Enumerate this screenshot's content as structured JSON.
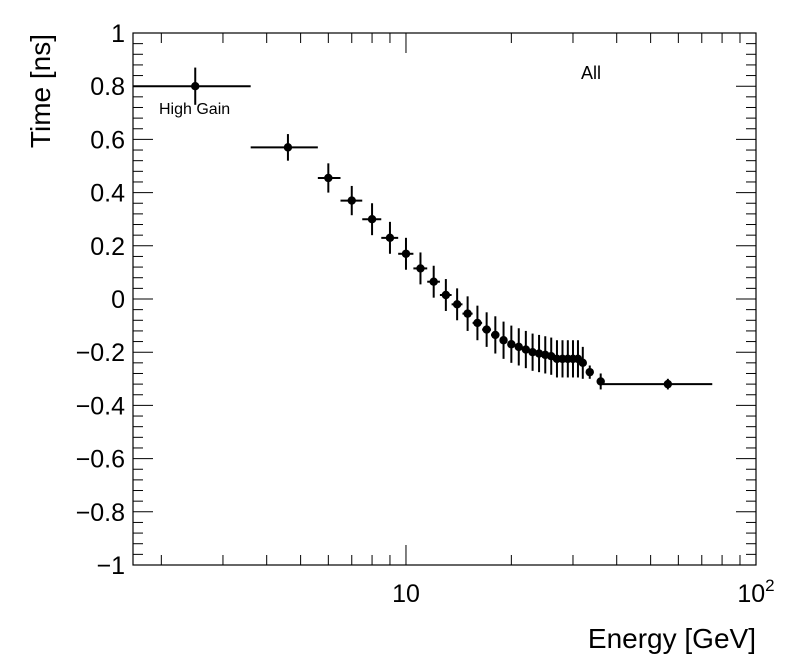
{
  "chart_data": {
    "type": "scatter",
    "title": "",
    "xlabel": "Energy [GeV]",
    "ylabel": "Time [ns]",
    "xscale": "log",
    "xlim": [
      1.66,
      100
    ],
    "ylim": [
      -1,
      1
    ],
    "grid": false,
    "y_tick_labels": [
      "1",
      "0.8",
      "0.6",
      "0.4",
      "0.2",
      "0",
      "−0.2",
      "−0.4",
      "−0.6",
      "−0.8",
      "−1"
    ],
    "x_tick_labels": [
      {
        "value": 10,
        "base": "10",
        "exp": ""
      },
      {
        "value": 100,
        "base": "10",
        "exp": "2"
      }
    ],
    "annotations": [
      {
        "text": "All",
        "position": "top-right"
      },
      {
        "text": "High Gain",
        "position": "top-left"
      }
    ],
    "series": [
      {
        "marker": "filled-circle",
        "points": [
          {
            "x": 2.5,
            "y": 0.8,
            "xlo": 1.66,
            "xhi": 3.6,
            "yerr": 0.07
          },
          {
            "x": 4.6,
            "y": 0.57,
            "xlo": 3.6,
            "xhi": 5.6,
            "yerr": 0.05
          },
          {
            "x": 6.0,
            "y": 0.455,
            "xlo": 5.6,
            "xhi": 6.5,
            "yerr": 0.055
          },
          {
            "x": 7.0,
            "y": 0.37,
            "xlo": 6.5,
            "xhi": 7.5,
            "yerr": 0.055
          },
          {
            "x": 8.0,
            "y": 0.3,
            "xlo": 7.5,
            "xhi": 8.5,
            "yerr": 0.06
          },
          {
            "x": 9.0,
            "y": 0.23,
            "xlo": 8.5,
            "xhi": 9.5,
            "yerr": 0.06
          },
          {
            "x": 10.0,
            "y": 0.17,
            "xlo": 9.5,
            "xhi": 10.5,
            "yerr": 0.06
          },
          {
            "x": 11.0,
            "y": 0.115,
            "xlo": 10.5,
            "xhi": 11.5,
            "yerr": 0.06
          },
          {
            "x": 12.0,
            "y": 0.065,
            "xlo": 11.5,
            "xhi": 12.5,
            "yerr": 0.06
          },
          {
            "x": 13.0,
            "y": 0.015,
            "xlo": 12.5,
            "xhi": 13.5,
            "yerr": 0.06
          },
          {
            "x": 14.0,
            "y": -0.02,
            "xlo": 13.5,
            "xhi": 14.5,
            "yerr": 0.06
          },
          {
            "x": 15.0,
            "y": -0.055,
            "xlo": 14.5,
            "xhi": 15.5,
            "yerr": 0.065
          },
          {
            "x": 16.0,
            "y": -0.09,
            "xlo": 15.5,
            "xhi": 16.5,
            "yerr": 0.065
          },
          {
            "x": 17.0,
            "y": -0.115,
            "xlo": 16.5,
            "xhi": 17.5,
            "yerr": 0.065
          },
          {
            "x": 18.0,
            "y": -0.135,
            "xlo": 17.5,
            "xhi": 18.5,
            "yerr": 0.07
          },
          {
            "x": 19.0,
            "y": -0.155,
            "xlo": 18.5,
            "xhi": 19.5,
            "yerr": 0.07
          },
          {
            "x": 20.0,
            "y": -0.17,
            "xlo": 19.5,
            "xhi": 20.5,
            "yerr": 0.07
          },
          {
            "x": 21.0,
            "y": -0.18,
            "xlo": 20.5,
            "xhi": 21.5,
            "yerr": 0.07
          },
          {
            "x": 22.0,
            "y": -0.19,
            "xlo": 21.5,
            "xhi": 22.5,
            "yerr": 0.07
          },
          {
            "x": 23.0,
            "y": -0.2,
            "xlo": 22.5,
            "xhi": 23.5,
            "yerr": 0.07
          },
          {
            "x": 24.0,
            "y": -0.205,
            "xlo": 23.5,
            "xhi": 24.5,
            "yerr": 0.07
          },
          {
            "x": 25.0,
            "y": -0.21,
            "xlo": 24.5,
            "xhi": 25.5,
            "yerr": 0.07
          },
          {
            "x": 26.0,
            "y": -0.215,
            "xlo": 25.5,
            "xhi": 26.5,
            "yerr": 0.07
          },
          {
            "x": 27.0,
            "y": -0.225,
            "xlo": 26.5,
            "xhi": 27.5,
            "yerr": 0.07
          },
          {
            "x": 28.0,
            "y": -0.225,
            "xlo": 27.5,
            "xhi": 28.5,
            "yerr": 0.07
          },
          {
            "x": 29.0,
            "y": -0.225,
            "xlo": 28.5,
            "xhi": 29.5,
            "yerr": 0.07
          },
          {
            "x": 30.0,
            "y": -0.225,
            "xlo": 29.5,
            "xhi": 30.5,
            "yerr": 0.07
          },
          {
            "x": 31.0,
            "y": -0.225,
            "xlo": 30.5,
            "xhi": 31.5,
            "yerr": 0.07
          },
          {
            "x": 32.0,
            "y": -0.24,
            "xlo": 31.5,
            "xhi": 32.5,
            "yerr": 0.06
          },
          {
            "x": 33.5,
            "y": -0.275,
            "xlo": 33.0,
            "xhi": 34.0,
            "yerr": 0.025
          },
          {
            "x": 36.0,
            "y": -0.31,
            "xlo": 35.5,
            "xhi": 36.5,
            "yerr": 0.03
          },
          {
            "x": 56.0,
            "y": -0.32,
            "xlo": 36.5,
            "xhi": 75.0,
            "yerr": 0.02
          }
        ]
      }
    ]
  }
}
